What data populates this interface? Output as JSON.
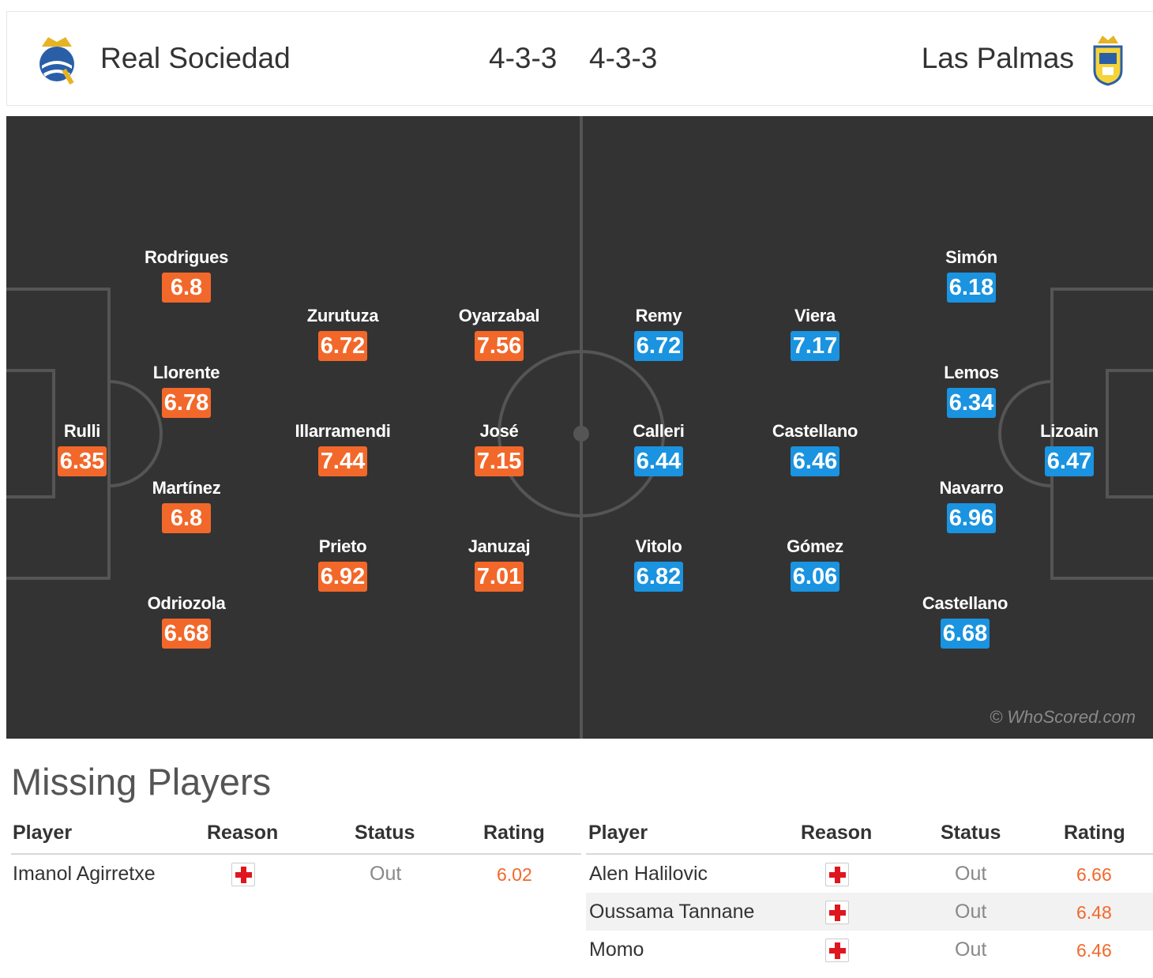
{
  "header": {
    "home_team": "Real Sociedad",
    "away_team": "Las Palmas",
    "home_formation": "4-3-3",
    "away_formation": "4-3-3"
  },
  "pitch": {
    "watermark": "© WhoScored.com",
    "home_players": [
      {
        "name": "Rulli",
        "rating": "6.35"
      },
      {
        "name": "Rodrigues",
        "rating": "6.8"
      },
      {
        "name": "Llorente",
        "rating": "6.78"
      },
      {
        "name": "Martínez",
        "rating": "6.8"
      },
      {
        "name": "Odriozola",
        "rating": "6.68"
      },
      {
        "name": "Zurutuza",
        "rating": "6.72"
      },
      {
        "name": "Illarramendi",
        "rating": "7.44"
      },
      {
        "name": "Prieto",
        "rating": "6.92"
      },
      {
        "name": "Oyarzabal",
        "rating": "7.56"
      },
      {
        "name": "José",
        "rating": "7.15"
      },
      {
        "name": "Januzaj",
        "rating": "7.01"
      }
    ],
    "away_players": [
      {
        "name": "Remy",
        "rating": "6.72"
      },
      {
        "name": "Calleri",
        "rating": "6.44"
      },
      {
        "name": "Vitolo",
        "rating": "6.82"
      },
      {
        "name": "Viera",
        "rating": "7.17"
      },
      {
        "name": "Castellano",
        "rating": "6.46"
      },
      {
        "name": "Gómez",
        "rating": "6.06"
      },
      {
        "name": "Simón",
        "rating": "6.18"
      },
      {
        "name": "Lemos",
        "rating": "6.34"
      },
      {
        "name": "Navarro",
        "rating": "6.96"
      },
      {
        "name": "Castellano",
        "rating": "6.68"
      },
      {
        "name": "Lizoain",
        "rating": "6.47"
      }
    ]
  },
  "missing": {
    "title": "Missing Players",
    "columns": {
      "player": "Player",
      "reason": "Reason",
      "status": "Status",
      "rating": "Rating"
    },
    "home": [
      {
        "player": "Imanol Agirretxe",
        "reason": "injury-icon",
        "status": "Out",
        "rating": "6.02"
      }
    ],
    "away": [
      {
        "player": "Alen Halilovic",
        "reason": "injury-icon",
        "status": "Out",
        "rating": "6.66"
      },
      {
        "player": "Oussama Tannane",
        "reason": "injury-icon",
        "status": "Out",
        "rating": "6.48"
      },
      {
        "player": "Momo",
        "reason": "injury-icon",
        "status": "Out",
        "rating": "6.46"
      }
    ]
  },
  "colors": {
    "home_rating": "#f2682a",
    "away_rating": "#1a93e0",
    "pitch": "#333333"
  }
}
